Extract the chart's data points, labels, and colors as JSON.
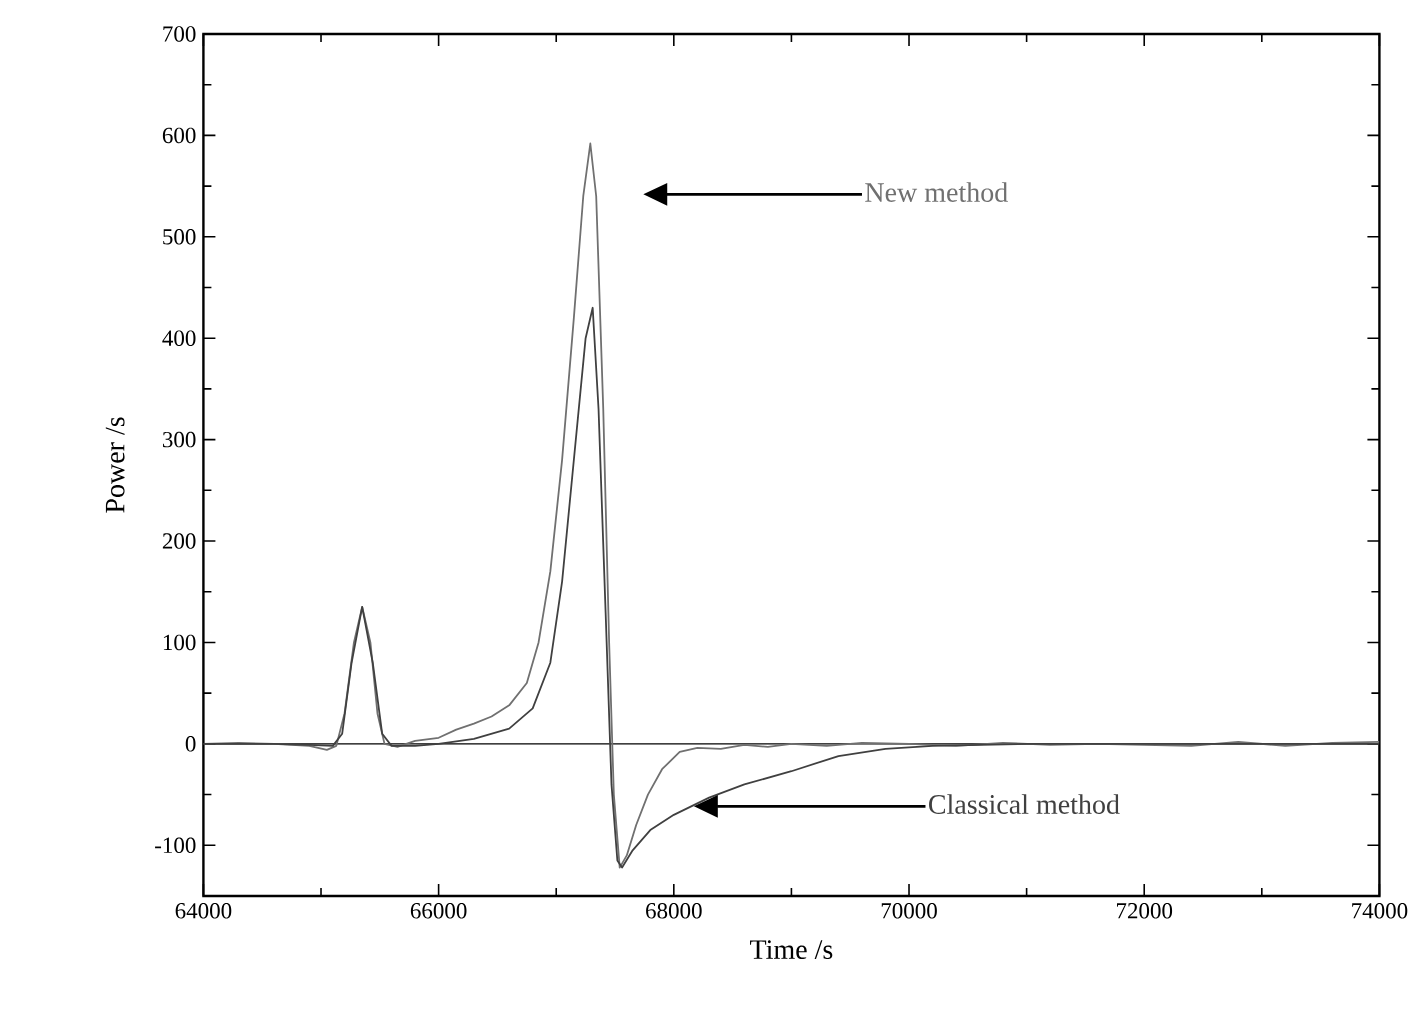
{
  "chart_data": {
    "type": "line",
    "xlabel": "Time /s",
    "ylabel": "Power /s",
    "xlim": [
      64000,
      74000
    ],
    "ylim": [
      -150,
      700
    ],
    "xticks": [
      64000,
      66000,
      68000,
      70000,
      72000,
      74000
    ],
    "yticks": [
      -100,
      0,
      100,
      200,
      300,
      400,
      500,
      600,
      700
    ],
    "grid": false,
    "marker": "none",
    "line_style": "solid",
    "ref_lines": [
      {
        "axis": "y",
        "value": 0,
        "color": "#000000"
      }
    ],
    "series": [
      {
        "name": "New method",
        "color": "#707070",
        "x": [
          64000,
          64300,
          64600,
          64900,
          65050,
          65130,
          65200,
          65280,
          65350,
          65420,
          65480,
          65540,
          65650,
          65800,
          66000,
          66150,
          66300,
          66450,
          66600,
          66750,
          66850,
          66950,
          67050,
          67150,
          67230,
          67290,
          67340,
          67400,
          67450,
          67490,
          67540,
          67600,
          67680,
          67780,
          67900,
          68050,
          68200,
          68400,
          68600,
          68800,
          69000,
          69300,
          69600,
          70000,
          70400,
          70800,
          71200,
          71600,
          72000,
          72400,
          72800,
          73200,
          73600,
          74000
        ],
        "values": [
          0,
          1,
          0,
          -2,
          -6,
          -2,
          30,
          100,
          135,
          100,
          30,
          0,
          -3,
          3,
          6,
          14,
          20,
          27,
          38,
          60,
          100,
          170,
          280,
          420,
          540,
          592,
          540,
          330,
          100,
          -50,
          -122,
          -110,
          -80,
          -50,
          -25,
          -8,
          -4,
          -5,
          -1,
          -3,
          0,
          -2,
          1,
          0,
          -2,
          1,
          -1,
          0,
          -1,
          -2,
          2,
          -2,
          1,
          2
        ]
      },
      {
        "name": "Classical method",
        "color": "#404040",
        "x": [
          64000,
          64600,
          64900,
          65100,
          65180,
          65260,
          65350,
          65440,
          65520,
          65600,
          65800,
          66000,
          66300,
          66600,
          66800,
          66950,
          67050,
          67150,
          67250,
          67310,
          67360,
          67420,
          67470,
          67520,
          67560,
          67650,
          67800,
          68000,
          68300,
          68600,
          69000,
          69400,
          69800,
          70200,
          71000,
          72000,
          73000,
          74000
        ],
        "values": [
          0,
          0,
          -1,
          -2,
          10,
          80,
          135,
          80,
          10,
          -2,
          -2,
          0,
          5,
          15,
          35,
          80,
          160,
          280,
          400,
          430,
          330,
          130,
          -40,
          -115,
          -122,
          -105,
          -85,
          -70,
          -53,
          -40,
          -27,
          -12,
          -5,
          -2,
          0,
          0,
          0,
          0
        ]
      }
    ]
  }
}
